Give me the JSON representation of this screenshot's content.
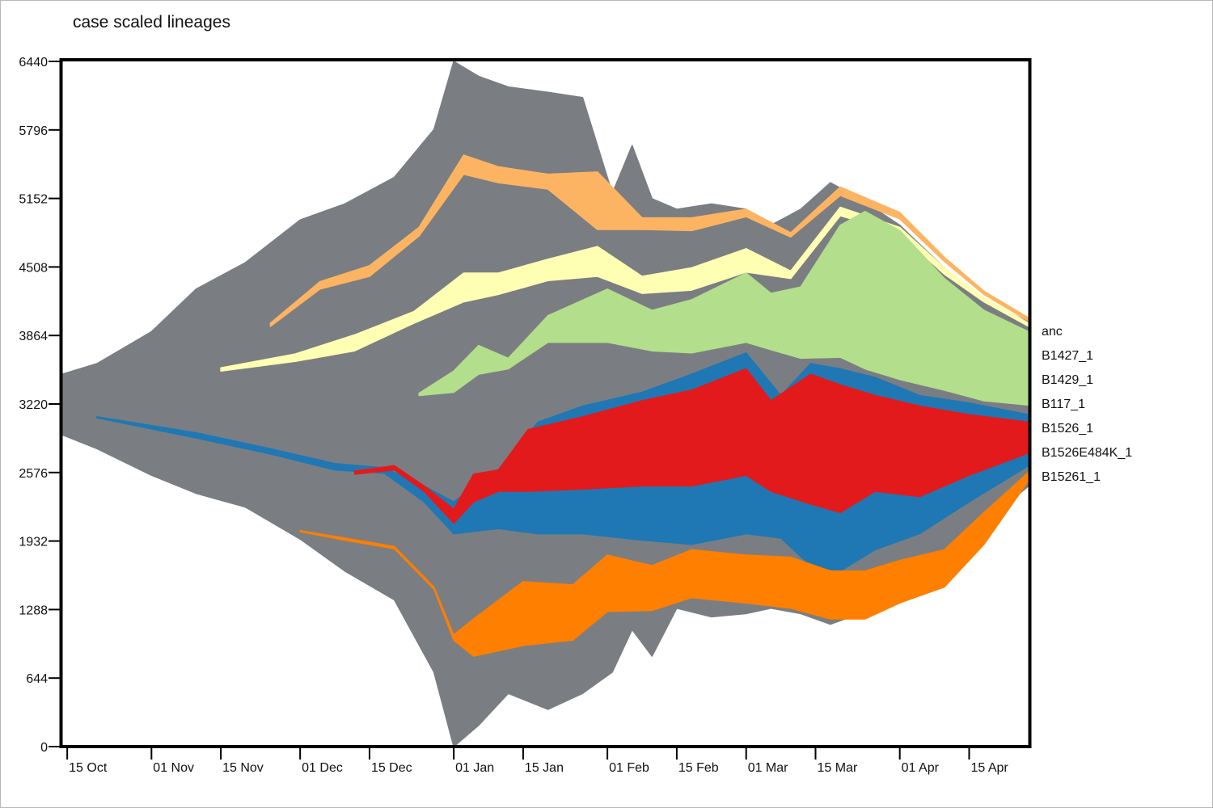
{
  "chart_data": {
    "type": "area",
    "title": "case scaled lineages",
    "xlabel": "",
    "ylabel": "",
    "ylim": [
      0,
      6440
    ],
    "y_ticks": [
      0,
      644,
      1288,
      1932,
      2576,
      3220,
      3864,
      4508,
      5152,
      5796,
      6440
    ],
    "xlim": [
      "2020-10-14",
      "2021-04-27"
    ],
    "x_ticks": [
      {
        "date": "2020-10-15",
        "label": "15 Oct"
      },
      {
        "date": "2020-11-01",
        "label": "01 Nov"
      },
      {
        "date": "2020-11-15",
        "label": "15 Nov"
      },
      {
        "date": "2020-12-01",
        "label": "01 Dec"
      },
      {
        "date": "2020-12-15",
        "label": "15 Dec"
      },
      {
        "date": "2021-01-01",
        "label": "01 Jan"
      },
      {
        "date": "2021-01-15",
        "label": "15 Jan"
      },
      {
        "date": "2021-02-01",
        "label": "01 Feb"
      },
      {
        "date": "2021-02-15",
        "label": "15 Feb"
      },
      {
        "date": "2021-03-01",
        "label": "01 Mar"
      },
      {
        "date": "2021-03-15",
        "label": "15 Mar"
      },
      {
        "date": "2021-04-01",
        "label": "01 Apr"
      },
      {
        "date": "2021-04-15",
        "label": "15 Apr"
      }
    ],
    "grid": false,
    "legend_position": "right",
    "legend": [
      "anc",
      "B1427_1",
      "B1429_1",
      "B117_1",
      "B1526_1",
      "B1526E484K_1",
      "B15261_1"
    ],
    "layers": [
      {
        "kind": "envelope",
        "color": "#7a7e82",
        "dates": [
          "2020-10-14",
          "2020-10-21",
          "2020-11-01",
          "2020-11-10",
          "2020-11-20",
          "2020-12-01",
          "2020-12-10",
          "2020-12-20",
          "2020-12-28",
          "2021-01-01",
          "2021-01-06",
          "2021-01-12",
          "2021-01-20",
          "2021-01-27",
          "2021-02-02",
          "2021-02-06",
          "2021-02-10",
          "2021-02-15",
          "2021-02-22",
          "2021-03-01",
          "2021-03-06",
          "2021-03-12",
          "2021-03-18",
          "2021-03-24",
          "2021-04-01",
          "2021-04-10",
          "2021-04-18",
          "2021-04-27"
        ],
        "upper": [
          3500,
          3600,
          3900,
          4300,
          4550,
          4950,
          5100,
          5350,
          5800,
          6440,
          6300,
          6200,
          6150,
          6100,
          5200,
          5650,
          5150,
          5050,
          5100,
          5050,
          4900,
          5050,
          5300,
          5150,
          4900,
          4500,
          4200,
          3990
        ],
        "lower": [
          2930,
          2800,
          2550,
          2380,
          2250,
          1950,
          1650,
          1380,
          700,
          0,
          200,
          500,
          350,
          500,
          700,
          1100,
          850,
          1300,
          1220,
          1250,
          1300,
          1250,
          1150,
          1250,
          1500,
          1750,
          2100,
          2450
        ]
      },
      {
        "kind": "band",
        "name": "B1427_1",
        "color": "#fdb462",
        "dates": [
          "2020-11-25",
          "2020-12-05",
          "2020-12-15",
          "2020-12-25",
          "2021-01-03",
          "2021-01-10",
          "2021-01-20",
          "2021-01-30",
          "2021-02-08",
          "2021-02-18",
          "2021-03-01",
          "2021-03-10",
          "2021-03-20",
          "2021-04-01",
          "2021-04-10",
          "2021-04-18",
          "2021-04-27"
        ],
        "upper": [
          3980,
          4370,
          4520,
          4880,
          5560,
          5450,
          5380,
          5400,
          4970,
          4970,
          5050,
          4830,
          5260,
          5020,
          4600,
          4280,
          4030
        ],
        "lower": [
          3950,
          4300,
          4420,
          4800,
          5380,
          5300,
          5240,
          4860,
          4860,
          4850,
          4980,
          4790,
          5180,
          4960,
          4560,
          4250,
          4000
        ]
      },
      {
        "kind": "band",
        "name": "B1429_1",
        "color": "#ffffb3",
        "dates": [
          "2020-11-15",
          "2020-11-30",
          "2020-12-12",
          "2020-12-24",
          "2021-01-03",
          "2021-01-10",
          "2021-01-20",
          "2021-01-30",
          "2021-02-08",
          "2021-02-18",
          "2021-03-01",
          "2021-03-10",
          "2021-03-20",
          "2021-04-01",
          "2021-04-10",
          "2021-04-18",
          "2021-04-27"
        ],
        "upper": [
          3560,
          3690,
          3870,
          4090,
          4450,
          4450,
          4580,
          4700,
          4420,
          4500,
          4680,
          4470,
          5070,
          4880,
          4500,
          4220,
          3980
        ],
        "lower": [
          3530,
          3620,
          3720,
          3980,
          4180,
          4250,
          4380,
          4420,
          4260,
          4290,
          4460,
          4400,
          4990,
          4820,
          4440,
          4180,
          3950
        ]
      },
      {
        "kind": "band",
        "name": "B117_1",
        "color": "#b3de8b",
        "dates": [
          "2020-12-25",
          "2021-01-01",
          "2021-01-06",
          "2021-01-12",
          "2021-01-20",
          "2021-02-01",
          "2021-02-10",
          "2021-02-18",
          "2021-03-01",
          "2021-03-06",
          "2021-03-12",
          "2021-03-20",
          "2021-03-25",
          "2021-04-01",
          "2021-04-10",
          "2021-04-18",
          "2021-04-27"
        ],
        "upper": [
          3320,
          3530,
          3770,
          3650,
          4050,
          4300,
          4100,
          4200,
          4450,
          4260,
          4320,
          4900,
          5030,
          4850,
          4400,
          4100,
          3900
        ],
        "lower": [
          3300,
          3330,
          3500,
          3550,
          3800,
          3800,
          3720,
          3700,
          3800,
          3730,
          3650,
          3660,
          3550,
          3450,
          3350,
          3250,
          3210
        ]
      },
      {
        "kind": "band",
        "name": "B1526_1",
        "color": "#1f78b4",
        "dates": [
          "2020-10-21",
          "2020-11-10",
          "2020-11-25",
          "2020-12-08",
          "2020-12-18",
          "2020-12-26",
          "2021-01-01",
          "2021-01-10",
          "2021-01-18",
          "2021-01-27",
          "2021-02-08",
          "2021-02-18",
          "2021-03-01",
          "2021-03-08",
          "2021-03-14",
          "2021-03-20",
          "2021-03-27",
          "2021-04-05",
          "2021-04-15",
          "2021-04-27"
        ],
        "upper": [
          3100,
          2950,
          2800,
          2660,
          2620,
          2450,
          2300,
          2600,
          3050,
          3200,
          3330,
          3500,
          3700,
          3300,
          3600,
          3550,
          3470,
          3300,
          3230,
          3120
        ],
        "lower": [
          3090,
          2900,
          2750,
          2600,
          2570,
          2300,
          2000,
          2050,
          2000,
          2000,
          1940,
          1900,
          2000,
          1960,
          1700,
          1650,
          1850,
          2000,
          2300,
          2640
        ]
      },
      {
        "kind": "band",
        "name": "B1526E484K_1",
        "color": "#e31a1c",
        "dates": [
          "2020-12-12",
          "2020-12-20",
          "2020-12-26",
          "2021-01-01",
          "2021-01-05",
          "2021-01-10",
          "2021-01-16",
          "2021-01-27",
          "2021-02-08",
          "2021-02-18",
          "2021-03-01",
          "2021-03-06",
          "2021-03-14",
          "2021-03-20",
          "2021-03-27",
          "2021-04-05",
          "2021-04-15",
          "2021-04-27"
        ],
        "upper": [
          2590,
          2640,
          2450,
          2230,
          2560,
          2600,
          2980,
          3100,
          3250,
          3350,
          3550,
          3250,
          3500,
          3400,
          3300,
          3200,
          3120,
          3050
        ],
        "lower": [
          2560,
          2600,
          2400,
          2100,
          2300,
          2400,
          2400,
          2420,
          2450,
          2450,
          2550,
          2400,
          2280,
          2200,
          2400,
          2350,
          2550,
          2760
        ]
      },
      {
        "kind": "band",
        "name": "B15261_1",
        "color": "#ff7f00",
        "dates": [
          "2020-12-01",
          "2020-12-10",
          "2020-12-20",
          "2020-12-28",
          "2021-01-01",
          "2021-01-05",
          "2021-01-15",
          "2021-01-25",
          "2021-02-01",
          "2021-02-10",
          "2021-02-18",
          "2021-03-01",
          "2021-03-10",
          "2021-03-18",
          "2021-03-25",
          "2021-04-01",
          "2021-04-10",
          "2021-04-18",
          "2021-04-27"
        ],
        "upper": [
          2030,
          1960,
          1880,
          1500,
          1050,
          1200,
          1550,
          1520,
          1800,
          1700,
          1850,
          1800,
          1780,
          1650,
          1650,
          1750,
          1850,
          2200,
          2580
        ],
        "lower": [
          2020,
          1940,
          1860,
          1480,
          1000,
          850,
          950,
          1000,
          1270,
          1280,
          1400,
          1350,
          1300,
          1200,
          1200,
          1350,
          1500,
          1900,
          2500
        ]
      }
    ]
  }
}
